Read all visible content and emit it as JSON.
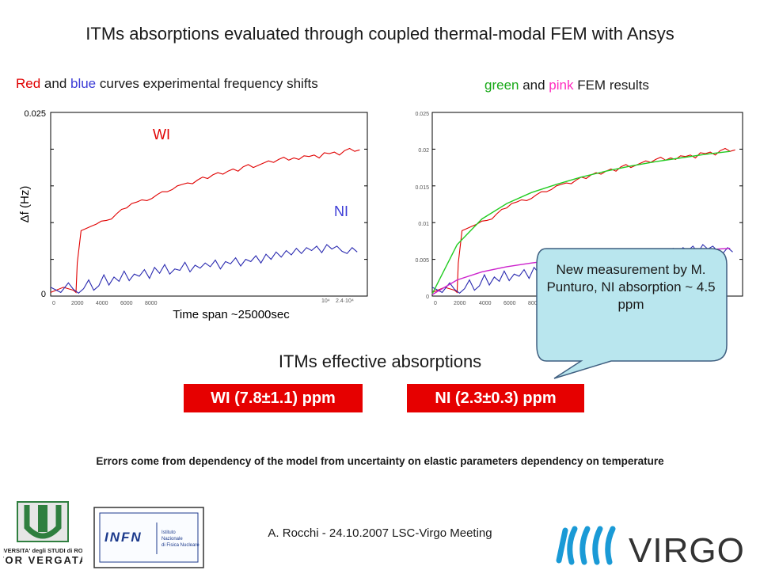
{
  "title": "ITMs absorptions evaluated through coupled thermal-modal FEM with Ansys",
  "subtitle_left": {
    "part1": "Red",
    "part2": " and ",
    "part3": "blue",
    "part4": " curves experimental frequency shifts"
  },
  "subtitle_right": {
    "part1": "green",
    "part2": " and ",
    "part3": "pink",
    "part4": " FEM results"
  },
  "callout": "New measurement by M. Punturo, NI absorption ~ 4.5 ppm",
  "effective_title": "ITMs effective absorptions",
  "box_wi": "WI (7.8±1.1) ppm",
  "box_ni": "NI (2.3±0.3) ppm",
  "errors_note": "Errors come from dependency of the model from uncertainty on elastic parameters dependency on temperature",
  "footer": "A. Rocchi - 24.10.2007 LSC-Virgo Meeting",
  "logos": {
    "left_university": "UNIVERSITA' degli STUDI di ROMA TOR VERGATA",
    "infn": "INFN Istituto Nazionale di Fisica Nucleare",
    "virgo": "VIRGO"
  },
  "colors": {
    "experimental_wi": "#e00000",
    "experimental_ni": "#2a2ab0",
    "fem_wi": "#22cc22",
    "fem_ni": "#cc22cc",
    "box": "#e60000",
    "callout_fill": "#b9e6ee"
  },
  "chart_data": [
    {
      "type": "line",
      "ylabel": "Δf (Hz)",
      "xlabel": "Time span ~25000sec",
      "xlim": [
        0,
        25000
      ],
      "ylim": [
        0,
        0.025
      ],
      "ytick_labels": [
        "0",
        "0.025"
      ],
      "xtick_labels": [
        "0",
        "2000",
        "4000",
        "6000",
        "8000",
        "10⁴",
        "2.4·10⁴"
      ],
      "annotations": [
        "WI",
        "NI"
      ],
      "series": [
        {
          "name": "WI",
          "x": [
            0,
            1000,
            1800,
            2000,
            2100,
            2400,
            2800,
            3200,
            3600,
            4000,
            4400,
            4800,
            5200,
            5600,
            6000,
            6400,
            6800,
            7200,
            7600,
            8000,
            8400,
            8800,
            9200,
            9600,
            10000,
            10400,
            10800,
            11200,
            11600,
            12000,
            12400,
            12800,
            13200,
            13600,
            14000,
            14400,
            14800,
            15200,
            15600,
            16000,
            16400,
            16800,
            17200,
            17600,
            18000,
            18400,
            18800,
            19200,
            19600,
            20000,
            20400,
            20800,
            21200,
            21600,
            22000,
            22400,
            22800,
            23200,
            23600,
            24000,
            24400
          ],
          "y": [
            0.0005,
            0.0012,
            0.0008,
            0.0005,
            0.0045,
            0.0089,
            0.0092,
            0.0095,
            0.0098,
            0.0102,
            0.0103,
            0.0105,
            0.0112,
            0.0118,
            0.012,
            0.0126,
            0.0128,
            0.0131,
            0.013,
            0.0133,
            0.0138,
            0.0142,
            0.0142,
            0.0145,
            0.015,
            0.0152,
            0.0154,
            0.0153,
            0.0158,
            0.0162,
            0.016,
            0.0165,
            0.0168,
            0.0166,
            0.017,
            0.0173,
            0.017,
            0.0176,
            0.0179,
            0.0175,
            0.0178,
            0.0181,
            0.0184,
            0.0182,
            0.0186,
            0.0189,
            0.0185,
            0.0188,
            0.0186,
            0.0191,
            0.019,
            0.0192,
            0.0188,
            0.0195,
            0.0194,
            0.0196,
            0.0192,
            0.0198,
            0.0201,
            0.0197,
            0.0199
          ]
        },
        {
          "name": "NI",
          "x": [
            0,
            800,
            1400,
            1800,
            2200,
            2600,
            3000,
            3400,
            3800,
            4200,
            4600,
            5000,
            5400,
            5800,
            6200,
            6600,
            7000,
            7400,
            7800,
            8200,
            8600,
            9000,
            9400,
            9800,
            10200,
            10600,
            11000,
            11400,
            11800,
            12200,
            12600,
            13000,
            13400,
            13800,
            14200,
            14600,
            15000,
            15400,
            15800,
            16200,
            16600,
            17000,
            17400,
            17800,
            18200,
            18600,
            19000,
            19400,
            19800,
            20200,
            20600,
            21000,
            21400,
            21800,
            22200,
            22600,
            23000,
            23400,
            23800,
            24200
          ],
          "y": [
            0.0012,
            0.0005,
            0.0018,
            0.0009,
            0.0004,
            0.001,
            0.0022,
            0.0008,
            0.0014,
            0.0029,
            0.0015,
            0.0026,
            0.002,
            0.0034,
            0.0021,
            0.003,
            0.0027,
            0.0036,
            0.0024,
            0.0039,
            0.0031,
            0.0043,
            0.003,
            0.0037,
            0.0035,
            0.0046,
            0.0033,
            0.0042,
            0.0038,
            0.0045,
            0.004,
            0.0049,
            0.0037,
            0.0047,
            0.0044,
            0.0052,
            0.0041,
            0.005,
            0.0047,
            0.0055,
            0.0045,
            0.0057,
            0.005,
            0.006,
            0.0053,
            0.0062,
            0.0056,
            0.0065,
            0.0058,
            0.0066,
            0.0062,
            0.0068,
            0.0059,
            0.007,
            0.0064,
            0.0068,
            0.0061,
            0.0058,
            0.0066,
            0.006
          ]
        }
      ]
    },
    {
      "type": "line",
      "xlim": [
        0,
        25000
      ],
      "ylim": [
        0,
        0.025
      ],
      "ytick_labels": [
        "0",
        "0.005",
        "0.01",
        "0.015",
        "0.02",
        "0.025"
      ],
      "xtick_labels": [
        "0",
        "2000",
        "4000",
        "6000",
        "8000"
      ],
      "series": [
        {
          "name": "WI",
          "x": [
            0,
            1000,
            1800,
            2000,
            2100,
            2400,
            2800,
            3200,
            3600,
            4000,
            4400,
            4800,
            5200,
            5600,
            6000,
            6400,
            6800,
            7200,
            7600,
            8000,
            8400,
            8800,
            9200,
            9600,
            10000,
            10400,
            10800,
            11200,
            11600,
            12000,
            12400,
            12800,
            13200,
            13600,
            14000,
            14400,
            14800,
            15200,
            15600,
            16000,
            16400,
            16800,
            17200,
            17600,
            18000,
            18400,
            18800,
            19200,
            19600,
            20000,
            20400,
            20800,
            21200,
            21600,
            22000,
            22400,
            22800,
            23200,
            23600,
            24000,
            24400
          ],
          "y": [
            0.0005,
            0.0012,
            0.0008,
            0.0005,
            0.0045,
            0.0089,
            0.0092,
            0.0095,
            0.0098,
            0.0102,
            0.0103,
            0.0105,
            0.0112,
            0.0118,
            0.012,
            0.0126,
            0.0128,
            0.0131,
            0.013,
            0.0133,
            0.0138,
            0.0142,
            0.0142,
            0.0145,
            0.015,
            0.0152,
            0.0154,
            0.0153,
            0.0158,
            0.0162,
            0.016,
            0.0165,
            0.0168,
            0.0166,
            0.017,
            0.0173,
            0.017,
            0.0176,
            0.0179,
            0.0175,
            0.0178,
            0.0181,
            0.0184,
            0.0182,
            0.0186,
            0.0189,
            0.0185,
            0.0188,
            0.0186,
            0.0191,
            0.019,
            0.0192,
            0.0188,
            0.0195,
            0.0194,
            0.0196,
            0.0192,
            0.0198,
            0.0201,
            0.0197,
            0.0199
          ]
        },
        {
          "name": "NI",
          "x": [
            0,
            800,
            1400,
            1800,
            2200,
            2600,
            3000,
            3400,
            3800,
            4200,
            4600,
            5000,
            5400,
            5800,
            6200,
            6600,
            7000,
            7400,
            7800,
            8200,
            8600,
            9000,
            9400,
            9800,
            10200,
            10600,
            11000,
            11400,
            11800,
            12200,
            12600,
            13000,
            13400,
            13800,
            14200,
            14600,
            15000,
            15400,
            15800,
            16200,
            16600,
            17000,
            17400,
            17800,
            18200,
            18600,
            19000,
            19400,
            19800,
            20200,
            20600,
            21000,
            21400,
            21800,
            22200,
            22600,
            23000,
            23400,
            23800,
            24200
          ],
          "y": [
            0.0012,
            0.0005,
            0.0018,
            0.0009,
            0.0004,
            0.001,
            0.0022,
            0.0008,
            0.0014,
            0.0029,
            0.0015,
            0.0026,
            0.002,
            0.0034,
            0.0021,
            0.003,
            0.0027,
            0.0036,
            0.0024,
            0.0039,
            0.0031,
            0.0043,
            0.003,
            0.0037,
            0.0035,
            0.0046,
            0.0033,
            0.0042,
            0.0038,
            0.0045,
            0.004,
            0.0049,
            0.0037,
            0.0047,
            0.0044,
            0.0052,
            0.0041,
            0.005,
            0.0047,
            0.0055,
            0.0045,
            0.0057,
            0.005,
            0.006,
            0.0053,
            0.0062,
            0.0056,
            0.0065,
            0.0058,
            0.0066,
            0.0062,
            0.0068,
            0.0059,
            0.007,
            0.0064,
            0.0068,
            0.0061,
            0.0058,
            0.0066,
            0.006
          ]
        },
        {
          "name": "WI FEM",
          "x": [
            0,
            2000,
            4000,
            6000,
            8000,
            10000,
            12000,
            14000,
            16000,
            18000,
            20000,
            22000,
            24000
          ],
          "y": [
            0.0003,
            0.007,
            0.0105,
            0.0126,
            0.0141,
            0.0152,
            0.0162,
            0.017,
            0.0177,
            0.0183,
            0.0188,
            0.0193,
            0.0197
          ]
        },
        {
          "name": "NI FEM",
          "x": [
            0,
            2000,
            4000,
            6000,
            8000,
            10000,
            12000,
            14000,
            16000,
            18000,
            20000,
            22000,
            24000
          ],
          "y": [
            0.0002,
            0.0022,
            0.0033,
            0.004,
            0.0045,
            0.0049,
            0.0052,
            0.0055,
            0.0057,
            0.0059,
            0.0061,
            0.0063,
            0.0065
          ]
        }
      ]
    }
  ]
}
